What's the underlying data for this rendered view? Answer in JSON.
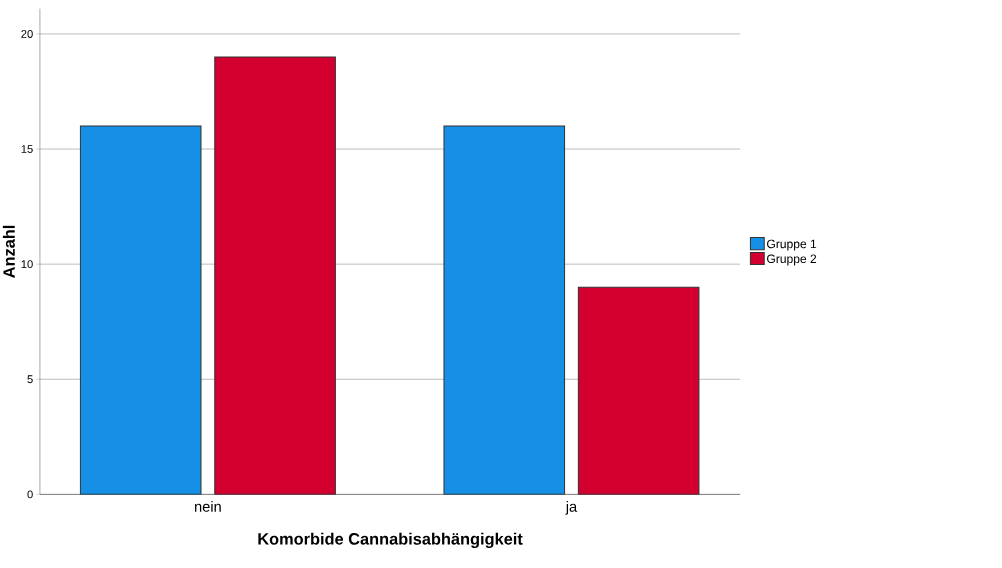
{
  "chart_data": {
    "type": "bar",
    "xlabel": "Komorbide Cannabisabhängigkeit",
    "ylabel": "Anzahl",
    "categories": [
      "nein",
      "ja"
    ],
    "series": [
      {
        "name": "Gruppe 1",
        "color": "#1590e6",
        "values": [
          16,
          16
        ]
      },
      {
        "name": "Gruppe 2",
        "color": "#d3002f",
        "values": [
          19,
          9
        ]
      }
    ],
    "ylim": [
      0,
      21.1
    ],
    "yticks": [
      0,
      5,
      10,
      15,
      20
    ],
    "grid": "y",
    "legend": "right"
  }
}
